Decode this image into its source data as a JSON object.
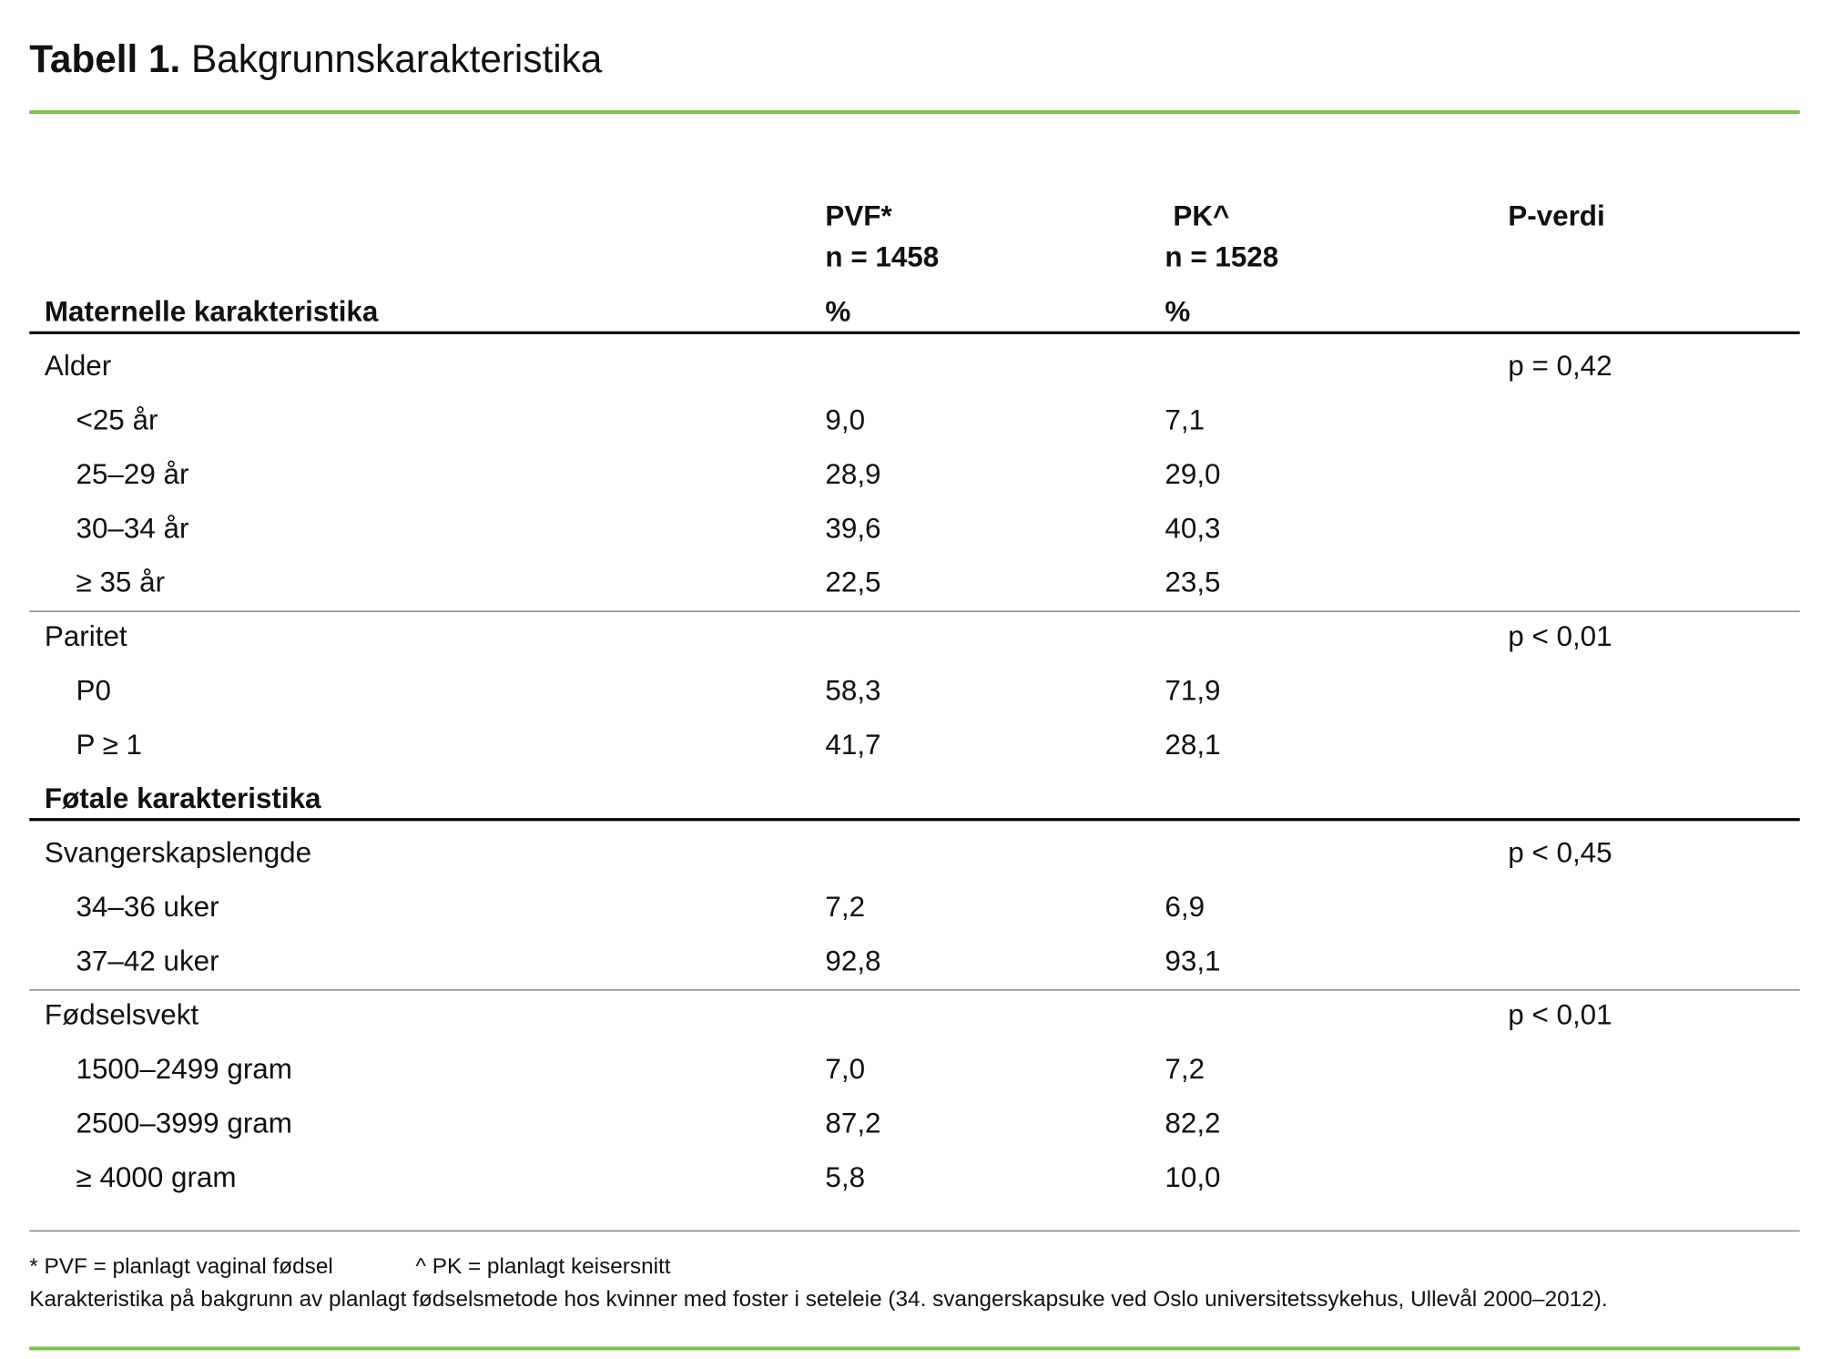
{
  "title": {
    "label": "Tabell 1.",
    "text": "Bakgrunnskarakteristika"
  },
  "table": {
    "header": {
      "pvf": [
        "PVF*",
        "n = 1458",
        "%"
      ],
      "pk": [
        "PK^",
        "n = 1528",
        "%"
      ],
      "p": "P-verdi"
    },
    "sections": [
      {
        "title": "Maternelle karakteristika",
        "groups": [
          {
            "label": "Alder",
            "p": "p = 0,42",
            "items": [
              {
                "label": "<25 år",
                "pvf": "9,0",
                "pk": "7,1"
              },
              {
                "label": "25–29 år",
                "pvf": "28,9",
                "pk": "29,0"
              },
              {
                "label": "30–34 år",
                "pvf": "39,6",
                "pk": "40,3"
              },
              {
                "label": "≥ 35 år",
                "pvf": "22,5",
                "pk": "23,5"
              }
            ]
          },
          {
            "label": "Paritet",
            "p": "p < 0,01",
            "items": [
              {
                "label": "P0",
                "pvf": "58,3",
                "pk": "71,9"
              },
              {
                "label": "P ≥ 1",
                "pvf": "41,7",
                "pk": "28,1"
              }
            ]
          }
        ]
      },
      {
        "title": "Føtale karakteristika",
        "groups": [
          {
            "label": "Svangerskapslengde",
            "p": "p < 0,45",
            "items": [
              {
                "label": "34–36 uker",
                "pvf": "7,2",
                "pk": "6,9"
              },
              {
                "label": "37–42 uker",
                "pvf": "92,8",
                "pk": "93,1"
              }
            ]
          },
          {
            "label": "Fødselsvekt",
            "p": "p < 0,01",
            "items": [
              {
                "label": "1500–2499 gram",
                "pvf": "7,0",
                "pk": "7,2"
              },
              {
                "label": "2500–3999 gram",
                "pvf": "87,2",
                "pk": "82,2"
              },
              {
                "label": "≥ 4000 gram",
                "pvf": "5,8",
                "pk": "10,0"
              }
            ]
          }
        ]
      }
    ]
  },
  "footnotes": [
    "* PVF = planlagt vaginal fødsel",
    "^ PK = planlagt keisersnitt"
  ],
  "caption": "Karakteristika på bakgrunn av planlagt fødselsmetode hos kvinner med foster i seteleie (34. svangerskapsuke ved Oslo universitetssykehus, Ullevål 2000–2012)."
}
